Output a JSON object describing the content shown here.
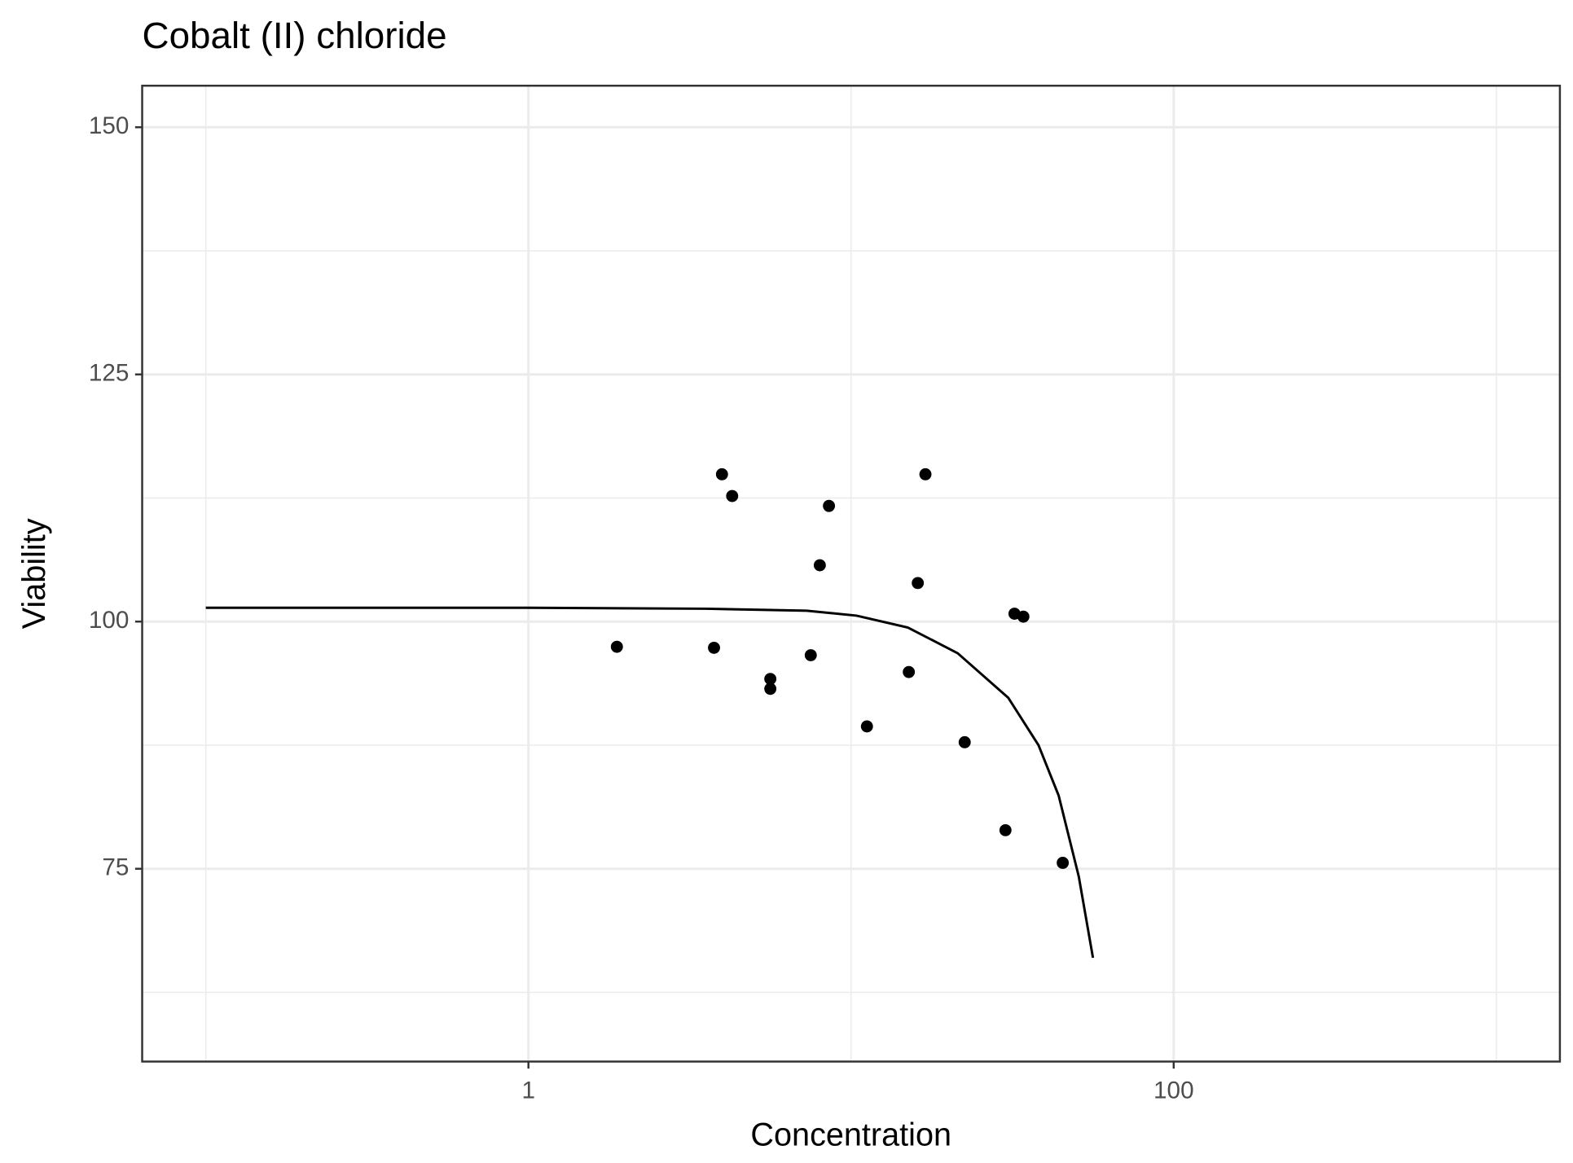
{
  "chart_data": {
    "type": "scatter",
    "title": "Cobalt (II) chloride",
    "x_label": "Concentration",
    "y_label": "Viability",
    "xscale": "log",
    "xlim": [
      0.0635,
      1574
    ],
    "xticks": [
      1,
      100
    ],
    "xminor": [
      0.1,
      10,
      1000
    ],
    "ylim": [
      55.5,
      154.2
    ],
    "yticks": [
      75,
      100,
      125,
      150
    ],
    "yminor": [
      62.5,
      87.5,
      112.5,
      137.5
    ],
    "grid": true,
    "series": [
      {
        "type": "scatter",
        "color": "#000000",
        "x": [
          1.88,
          3.76,
          3.98,
          4.28,
          5.62,
          5.62,
          7.5,
          8.0,
          8.54,
          11.2,
          15.1,
          16.1,
          17.0,
          22.5,
          30.1,
          32.1,
          34.2,
          45.3
        ],
        "values": [
          97.45,
          97.35,
          114.9,
          112.7,
          94.2,
          93.2,
          96.6,
          105.7,
          111.7,
          89.4,
          94.9,
          103.9,
          114.9,
          87.8,
          78.9,
          100.8,
          100.5,
          75.6
        ]
      },
      {
        "type": "line",
        "color": "#000000",
        "x": [
          0.1,
          1,
          3.55,
          7.29,
          10.4,
          15.0,
          21.4,
          30.7,
          38.1,
          44.0,
          50.8,
          56.2
        ],
        "values": [
          101.4,
          101.4,
          101.3,
          101.1,
          100.6,
          99.4,
          96.8,
          92.3,
          87.5,
          82.4,
          74.2,
          66.0
        ]
      }
    ]
  }
}
